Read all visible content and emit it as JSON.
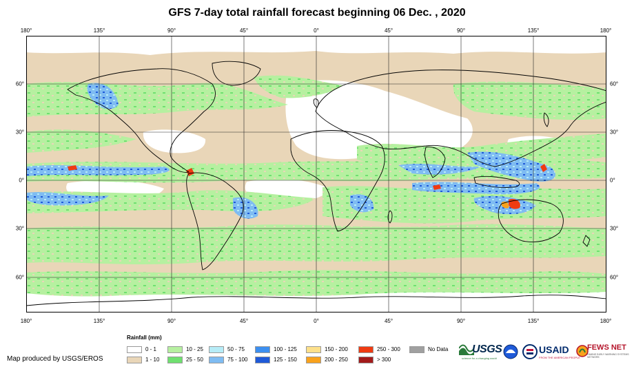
{
  "title": "GFS 7-day total rainfall forecast beginning 06 Dec. , 2020",
  "lon_labels": [
    "180°",
    "135°",
    "90°",
    "45°",
    "0°",
    "45°",
    "90°",
    "135°",
    "180°"
  ],
  "lat_labels": [
    "60°",
    "30°",
    "0°",
    "30°",
    "60°"
  ],
  "legend": {
    "title": "Rainfall (mm)",
    "items": [
      {
        "label": "0 - 1",
        "color": "#ffffff"
      },
      {
        "label": "1 - 10",
        "color": "#e9d6b8"
      },
      {
        "label": "10 - 25",
        "color": "#b6f0a0"
      },
      {
        "label": "25 - 50",
        "color": "#6fe070"
      },
      {
        "label": "50 - 75",
        "color": "#b6ecf7"
      },
      {
        "label": "75 - 100",
        "color": "#7fbcf2"
      },
      {
        "label": "100 - 125",
        "color": "#3c8ff0"
      },
      {
        "label": "125 - 150",
        "color": "#1f5ad8"
      },
      {
        "label": "150 - 200",
        "color": "#fde08a"
      },
      {
        "label": "200 - 250",
        "color": "#f9a21c"
      },
      {
        "label": "250 - 300",
        "color": "#ef3b12"
      },
      {
        "label": "> 300",
        "color": "#a31b1b"
      },
      {
        "label": "No Data",
        "color": "#a0a0a0"
      }
    ]
  },
  "footer": {
    "producer": "Map produced by USGS/EROS",
    "usgs": "USGS",
    "usgs_tagline": "science for a changing world",
    "usaid": "USAID",
    "usaid_tagline": "FROM THE AMERICAN PEOPLE",
    "fews": "FEWS NET",
    "fews_tagline": "FAMINE EARLY WARNING SYSTEMS NETWORK"
  }
}
